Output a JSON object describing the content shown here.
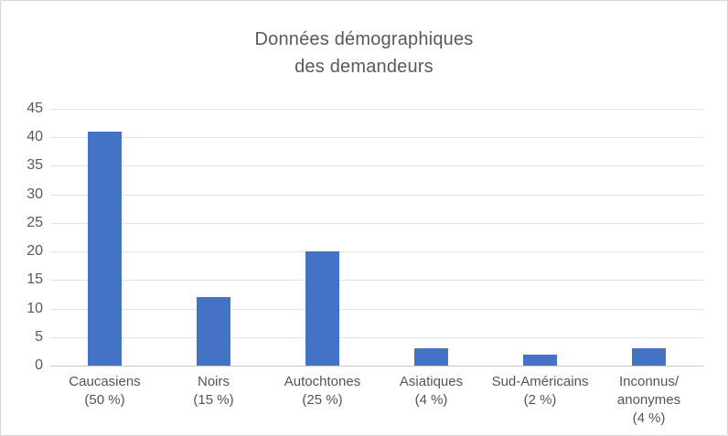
{
  "chart_data": {
    "type": "bar",
    "title": "Données démographiques des demandeurs",
    "title_lines": [
      "Données démographiques",
      "des demandeurs"
    ],
    "categories": [
      {
        "name": "Caucasiens",
        "percent": "50 %",
        "lines": [
          "Caucasiens",
          "(50 %)"
        ],
        "value": 41
      },
      {
        "name": "Noirs",
        "percent": "15 %",
        "lines": [
          "Noirs",
          "(15 %)"
        ],
        "value": 12
      },
      {
        "name": "Autochtones",
        "percent": "25 %",
        "lines": [
          "Autochtones",
          "(25 %)"
        ],
        "value": 20
      },
      {
        "name": "Asiatiques",
        "percent": "4 %",
        "lines": [
          "Asiatiques",
          "(4 %)"
        ],
        "value": 3
      },
      {
        "name": "Sud-Américains",
        "percent": "2 %",
        "lines": [
          "Sud-Américains",
          "(2 %)"
        ],
        "value": 2
      },
      {
        "name": "Inconnus/anonymes",
        "percent": "4 %",
        "lines": [
          "Inconnus/",
          "anonymes",
          "(4 %)"
        ],
        "value": 3
      }
    ],
    "values": [
      41,
      12,
      20,
      3,
      2,
      3
    ],
    "xlabel": "",
    "ylabel": "",
    "ylim": [
      0,
      45
    ],
    "yticks": [
      0,
      5,
      10,
      15,
      20,
      25,
      30,
      35,
      40,
      45
    ],
    "grid": true,
    "legend": false
  },
  "colors": {
    "bar": "#4472C4",
    "gridline": "#E2E2E2",
    "axis_line": "#C9C9C9",
    "text": "#595959",
    "background": "#FFFFFF",
    "border": "#D5D5D5"
  }
}
